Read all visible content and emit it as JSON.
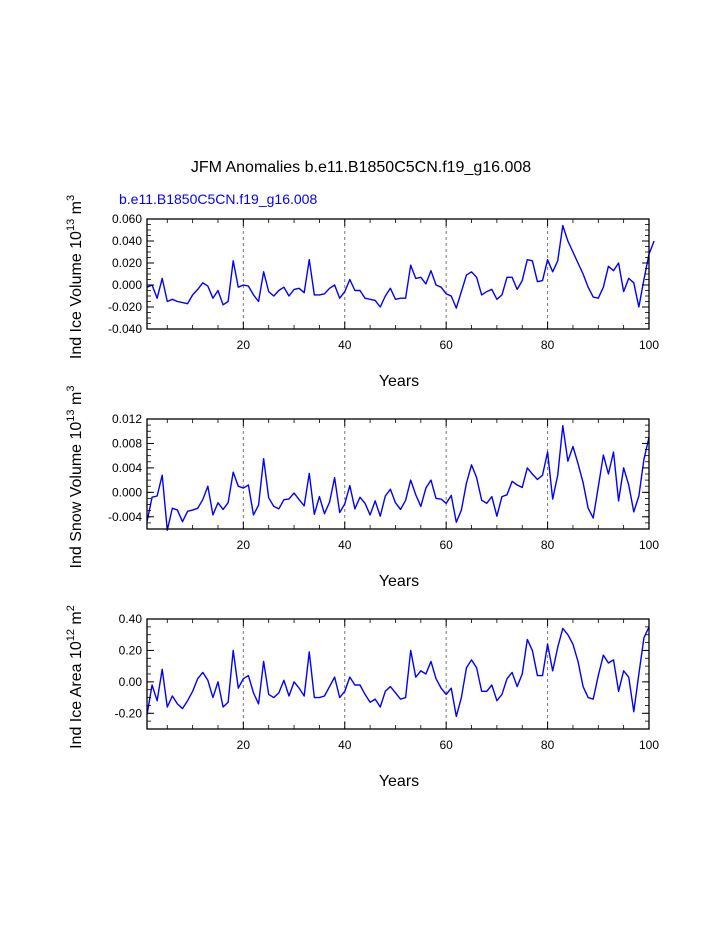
{
  "figure": {
    "title": "JFM Anomalies b.e11.B1850C5CN.f19_g16.008",
    "subtitle": "b.e11.B1850C5CN.f19_g16.008",
    "line_color": "#0000ff"
  },
  "chart_data": [
    {
      "type": "line",
      "ylabel_main": "Ind Ice Volume 10",
      "ylabel_exp": "13",
      "ylabel_unit": " m",
      "ylabel_unit_exp": "3",
      "xlabel": "Years",
      "xlim": [
        1,
        100
      ],
      "ylim": [
        -0.04,
        0.06
      ],
      "yticks": [
        -0.04,
        -0.02,
        0.0,
        0.02,
        0.04,
        0.06
      ],
      "yticklabels": [
        "-0.040",
        "-0.020",
        "0.000",
        "0.020",
        "0.040",
        "0.060"
      ],
      "xticks": [
        20,
        40,
        60,
        80,
        100
      ],
      "xticklabels": [
        "20",
        "40",
        "60",
        "80",
        "100"
      ],
      "vgrid": [
        20,
        40,
        60,
        80
      ],
      "values": [
        -0.002,
        0.0,
        -0.012,
        0.006,
        -0.015,
        -0.013,
        -0.015,
        -0.016,
        -0.017,
        -0.009,
        -0.004,
        0.002,
        -0.001,
        -0.012,
        -0.005,
        -0.018,
        -0.015,
        0.022,
        -0.002,
        0.0,
        -0.001,
        -0.009,
        -0.015,
        0.012,
        -0.006,
        -0.01,
        -0.005,
        -0.002,
        -0.01,
        -0.004,
        -0.003,
        -0.007,
        0.023,
        -0.009,
        -0.009,
        -0.008,
        -0.003,
        0.0,
        -0.012,
        -0.006,
        0.005,
        -0.005,
        -0.005,
        -0.012,
        -0.013,
        -0.014,
        -0.02,
        -0.01,
        -0.003,
        -0.013,
        -0.012,
        -0.012,
        0.018,
        0.006,
        0.007,
        0.001,
        0.013,
        0.0,
        -0.002,
        -0.008,
        -0.01,
        -0.021,
        -0.006,
        0.009,
        0.012,
        0.007,
        -0.009,
        -0.006,
        -0.004,
        -0.013,
        -0.009,
        0.007,
        0.007,
        -0.004,
        0.004,
        0.023,
        0.022,
        0.003,
        0.004,
        0.023,
        0.012,
        0.022,
        0.054,
        0.04,
        0.03,
        0.02,
        0.01,
        -0.002,
        -0.011,
        -0.012,
        -0.002,
        0.017,
        0.013,
        0.02,
        -0.006,
        0.006,
        0.002,
        -0.02,
        0.005,
        0.028,
        0.04
      ]
    },
    {
      "type": "line",
      "ylabel_main": "Ind Snow Volume 10",
      "ylabel_exp": "13",
      "ylabel_unit": " m",
      "ylabel_unit_exp": "3",
      "xlabel": "Years",
      "xlim": [
        1,
        100
      ],
      "ylim": [
        -0.006,
        0.012
      ],
      "yticks": [
        -0.004,
        0.0,
        0.004,
        0.008,
        0.012
      ],
      "yticklabels": [
        "-0.004",
        "0.000",
        "0.004",
        "0.008",
        "0.012"
      ],
      "xticks": [
        20,
        40,
        60,
        80,
        100
      ],
      "xticklabels": [
        "20",
        "40",
        "60",
        "80",
        "100"
      ],
      "vgrid": [
        20,
        40,
        60,
        80
      ],
      "values": [
        -0.0048,
        -0.0008,
        -0.0006,
        0.0028,
        -0.0062,
        -0.0026,
        -0.0029,
        -0.0048,
        -0.0031,
        -0.0029,
        -0.0026,
        -0.0012,
        0.001,
        -0.0037,
        -0.0017,
        -0.0028,
        -0.0017,
        0.0033,
        0.001,
        0.0007,
        0.0012,
        -0.0037,
        -0.0021,
        0.0055,
        -0.0009,
        -0.0023,
        -0.0027,
        -0.0012,
        -0.0011,
        -0.0001,
        -0.0012,
        -0.0022,
        0.0031,
        -0.0036,
        -0.0007,
        -0.0035,
        -0.0016,
        0.0024,
        -0.0033,
        -0.0019,
        0.0011,
        -0.0027,
        -0.0008,
        -0.0018,
        -0.0037,
        -0.0014,
        -0.0039,
        -0.0006,
        0.0005,
        -0.0017,
        -0.0028,
        -0.0013,
        0.002,
        -0.0004,
        -0.0023,
        0.0007,
        0.002,
        -0.001,
        -0.0011,
        -0.0018,
        -0.0005,
        -0.0049,
        -0.0029,
        0.0015,
        0.0045,
        0.0024,
        -0.0013,
        -0.0018,
        -0.0007,
        -0.0039,
        -0.0007,
        -0.0004,
        0.0018,
        0.0012,
        0.0008,
        0.004,
        0.003,
        0.0021,
        0.0028,
        0.0066,
        -0.0011,
        0.0028,
        0.0109,
        0.0051,
        0.0075,
        0.0047,
        0.0016,
        -0.0026,
        -0.0042,
        0.0009,
        0.0061,
        0.003,
        0.0066,
        -0.0014,
        0.004,
        0.0012,
        -0.0032,
        -0.0006,
        0.0054,
        0.009
      ]
    },
    {
      "type": "line",
      "ylabel_main": "Ind Ice Area 10",
      "ylabel_exp": "12",
      "ylabel_unit": " m",
      "ylabel_unit_exp": "2",
      "xlabel": "Years",
      "xlim": [
        1,
        100
      ],
      "ylim": [
        -0.3,
        0.4
      ],
      "yticks": [
        -0.2,
        0.0,
        0.2,
        0.4
      ],
      "yticklabels": [
        "-0.20",
        "0.00",
        "0.20",
        "0.40"
      ],
      "xticks": [
        20,
        40,
        60,
        80,
        100
      ],
      "xticklabels": [
        "20",
        "40",
        "60",
        "80",
        "100"
      ],
      "vgrid": [
        20,
        40,
        60,
        80
      ],
      "values": [
        -0.21,
        -0.02,
        -0.12,
        0.08,
        -0.16,
        -0.09,
        -0.14,
        -0.17,
        -0.12,
        -0.06,
        0.02,
        0.06,
        0.01,
        -0.1,
        0.0,
        -0.16,
        -0.13,
        0.2,
        -0.04,
        0.02,
        0.04,
        -0.07,
        -0.14,
        0.13,
        -0.08,
        -0.1,
        -0.07,
        0.01,
        -0.09,
        0.0,
        -0.04,
        -0.09,
        0.19,
        -0.1,
        -0.1,
        -0.09,
        -0.03,
        0.03,
        -0.1,
        -0.06,
        0.03,
        -0.02,
        -0.02,
        -0.08,
        -0.13,
        -0.11,
        -0.16,
        -0.06,
        -0.03,
        -0.07,
        -0.11,
        -0.1,
        0.2,
        0.03,
        0.07,
        0.05,
        0.13,
        0.02,
        -0.04,
        -0.08,
        -0.04,
        -0.22,
        -0.1,
        0.09,
        0.14,
        0.09,
        -0.06,
        -0.06,
        -0.02,
        -0.12,
        -0.08,
        0.02,
        0.06,
        -0.03,
        0.05,
        0.27,
        0.2,
        0.04,
        0.04,
        0.24,
        0.07,
        0.22,
        0.34,
        0.3,
        0.24,
        0.13,
        -0.03,
        -0.1,
        -0.11,
        0.04,
        0.17,
        0.12,
        0.14,
        -0.06,
        0.07,
        0.03,
        -0.19,
        0.05,
        0.28,
        0.35
      ]
    }
  ]
}
